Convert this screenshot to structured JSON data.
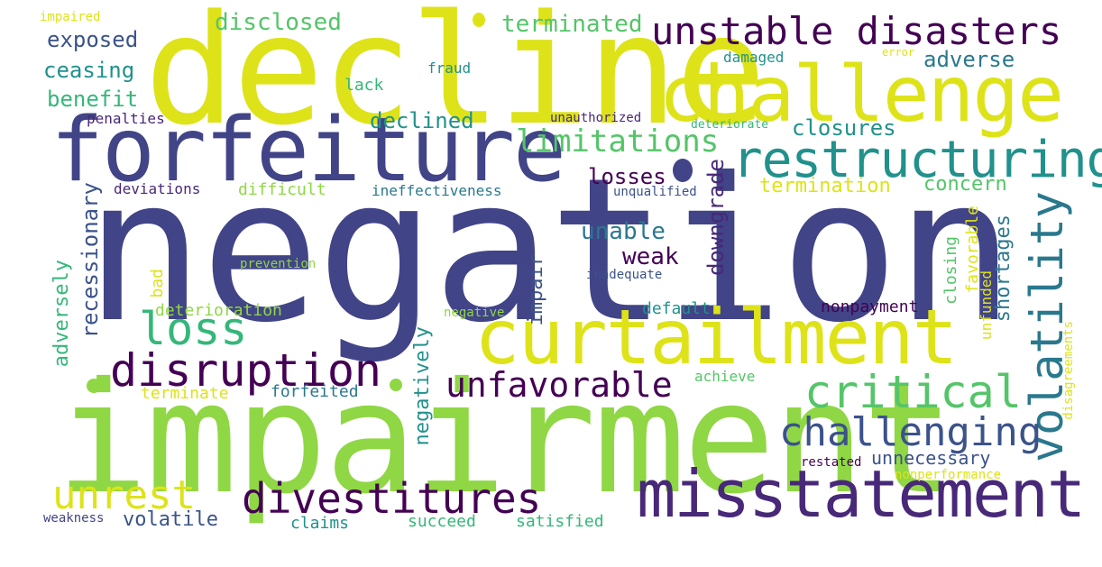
{
  "palette": {
    "yellow": "#dde318",
    "lime": "#8fd744",
    "green": "#54c568",
    "teal_green": "#35b779",
    "teal": "#21918c",
    "blue_teal": "#2a788e",
    "blue": "#3b528b",
    "indigo": "#414487",
    "purple": "#482878",
    "dark_purple": "#440154"
  },
  "words": {
    "negation": "negation",
    "impairment": "impairment",
    "decline": "decline",
    "challenge": "challenge",
    "forfeiture": "forfeiture",
    "curtailment": "curtailment",
    "misstatement": "misstatement",
    "restructuring": "restructuring",
    "unstable_disasters": "unstable disasters",
    "disruption": "disruption",
    "divestitures": "divestitures",
    "critical": "critical",
    "volatility": "volatility",
    "challenging": "challenging",
    "loss": "loss",
    "unfavorable": "unfavorable",
    "unrest": "unrest",
    "limitations": "limitations",
    "terminated": "terminated",
    "disclosed": "disclosed",
    "exposed": "exposed",
    "ceasing": "ceasing",
    "benefit": "benefit",
    "adverse": "adverse",
    "declined": "declined",
    "closures": "closures",
    "losses": "losses",
    "unable": "unable",
    "weak": "weak",
    "downgrade": "downgrade",
    "concern": "concern",
    "termination": "termination",
    "shortages": "shortages",
    "closing": "closing",
    "favorable": "favorable",
    "unfunded": "unfunded",
    "disagreements": "disagreements",
    "recessionary": "recessionary",
    "adversely": "adversely",
    "negatively": "negatively",
    "impair": "impair",
    "volatile": "volatile",
    "unnecessary": "unnecessary",
    "nonpayment": "nonpayment",
    "default": "default",
    "deterioration": "deterioration",
    "terminate": "terminate",
    "forfeited": "forfeited",
    "claims": "claims",
    "succeed": "succeed",
    "satisfied": "satisfied",
    "weakness": "weakness",
    "restated": "restated",
    "nonperformance": "nonperformance",
    "achieve": "achieve",
    "negative": "negative",
    "prevention": "prevention",
    "inadequate": "inadequate",
    "bad": "bad",
    "difficult": "difficult",
    "deviations": "deviations",
    "ineffectiveness": "ineffectiveness",
    "unqualified": "unqualified",
    "penalties": "penalties",
    "unauthorized": "unauthorized",
    "deteriorate": "deteriorate",
    "lack": "lack",
    "fraud": "fraud",
    "damaged": "damaged",
    "error": "error",
    "impaired": "impaired"
  }
}
